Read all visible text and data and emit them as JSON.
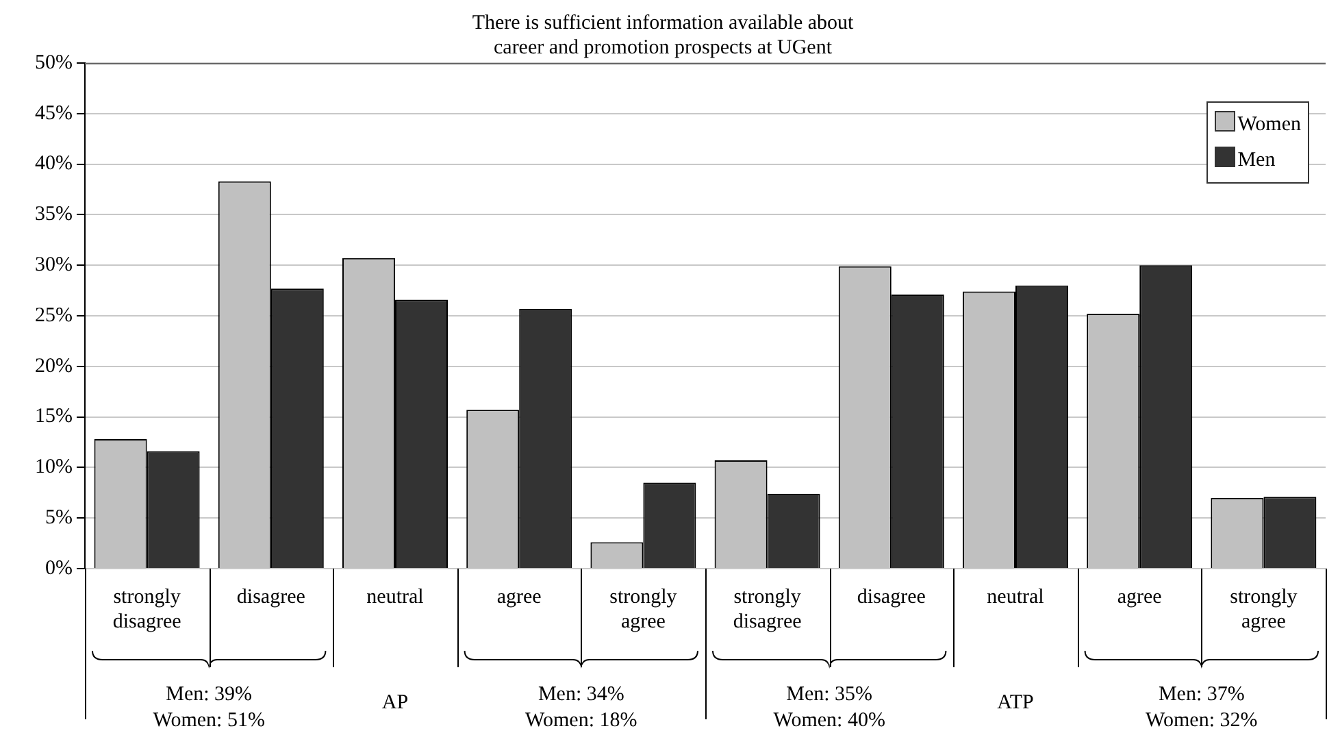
{
  "chart_data": {
    "type": "bar",
    "title": [
      "There is sufficient information available about",
      "career and promotion prospects at UGent"
    ],
    "categories": [
      "strongly disagree",
      "disagree",
      "neutral",
      "agree",
      "strongly agree",
      "strongly disagree",
      "disagree",
      "neutral",
      "agree",
      "strongly agree"
    ],
    "series": [
      {
        "name": "Women",
        "color": "#c0c0c0",
        "values": [
          12.8,
          38.3,
          30.7,
          15.7,
          2.6,
          10.7,
          29.9,
          27.4,
          25.2,
          7.0
        ]
      },
      {
        "name": "Men",
        "color": "#333333",
        "values": [
          11.6,
          27.7,
          26.6,
          25.7,
          8.5,
          7.4,
          27.1,
          28.0,
          30.0,
          7.1
        ]
      }
    ],
    "ylim": [
      0,
      50
    ],
    "yticks": [
      {
        "value": 0,
        "label": "0%"
      },
      {
        "value": 5,
        "label": "5%"
      },
      {
        "value": 10,
        "label": "10%"
      },
      {
        "value": 15,
        "label": "15%"
      },
      {
        "value": 20,
        "label": "20%"
      },
      {
        "value": 25,
        "label": "25%"
      },
      {
        "value": 30,
        "label": "30%"
      },
      {
        "value": 35,
        "label": "35%"
      },
      {
        "value": 40,
        "label": "40%"
      },
      {
        "value": 45,
        "label": "45%"
      },
      {
        "value": 50,
        "label": "50%"
      }
    ],
    "grid": "y",
    "legend": "top right",
    "annotations": [
      "Men: 39%\nWomen: 51%",
      "AP",
      "Men: 34%\nWomen: 18%",
      "Men: 35%\nWomen: 40%",
      "ATP",
      "Men: 37%\nWomen: 32%"
    ]
  }
}
